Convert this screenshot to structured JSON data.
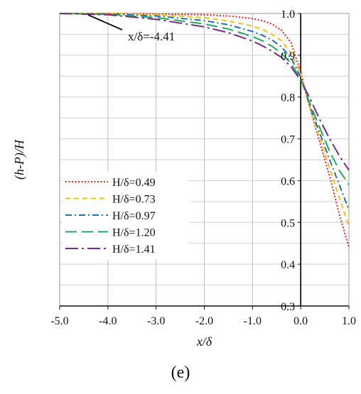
{
  "chart_data": {
    "type": "line",
    "title": "",
    "xlabel": "x/δ",
    "ylabel": "(h-P)/H",
    "xlim": [
      -5.0,
      1.0
    ],
    "ylim": [
      0.3,
      1.0
    ],
    "x_ticks": [
      "-5.0",
      "-4.0",
      "-3.0",
      "-2.0",
      "-1.0",
      "0.0",
      "1.0"
    ],
    "y_ticks": [
      "0.3",
      "0.4",
      "0.5",
      "0.6",
      "0.7",
      "0.8",
      "0.9",
      "1.0"
    ],
    "grid": true,
    "legend_position": "left-middle",
    "panel_label": "(e)",
    "annotation": {
      "text": "x/δ=-4.41",
      "x": -4.41,
      "y": 1.0
    },
    "series": [
      {
        "name": "H/δ=0.49",
        "color": "#e8211b",
        "dash": "dotted",
        "x": [
          -5.0,
          -4.0,
          -3.0,
          -2.0,
          -1.5,
          -1.0,
          -0.8,
          -0.6,
          -0.4,
          -0.2,
          0.0,
          0.2,
          0.4,
          0.6,
          0.8,
          1.0
        ],
        "y": [
          1.0,
          1.0,
          0.999,
          0.997,
          0.994,
          0.988,
          0.983,
          0.975,
          0.96,
          0.93,
          0.86,
          0.77,
          0.69,
          0.61,
          0.52,
          0.44
        ]
      },
      {
        "name": "H/δ=0.73",
        "color": "#f2c200",
        "dash": "dashed",
        "x": [
          -5.0,
          -4.0,
          -3.0,
          -2.0,
          -1.5,
          -1.0,
          -0.8,
          -0.6,
          -0.4,
          -0.2,
          0.0,
          0.2,
          0.4,
          0.6,
          0.8,
          1.0
        ],
        "y": [
          1.0,
          1.0,
          0.997,
          0.99,
          0.982,
          0.97,
          0.962,
          0.95,
          0.935,
          0.905,
          0.855,
          0.77,
          0.7,
          0.63,
          0.56,
          0.49
        ]
      },
      {
        "name": "H/δ=0.97",
        "color": "#1a73b8",
        "dash": "dashdot",
        "x": [
          -5.0,
          -4.0,
          -3.0,
          -2.0,
          -1.5,
          -1.0,
          -0.8,
          -0.6,
          -0.4,
          -0.2,
          0.0,
          0.2,
          0.4,
          0.6,
          0.8,
          1.0
        ],
        "y": [
          1.0,
          0.999,
          0.994,
          0.983,
          0.973,
          0.957,
          0.948,
          0.937,
          0.92,
          0.893,
          0.848,
          0.775,
          0.712,
          0.65,
          0.59,
          0.53
        ]
      },
      {
        "name": "H/δ=1.20",
        "color": "#1faa5c",
        "dash": "longdash",
        "x": [
          -5.0,
          -4.0,
          -3.0,
          -2.0,
          -1.5,
          -1.0,
          -0.8,
          -0.6,
          -0.4,
          -0.2,
          0.0,
          0.2,
          0.4,
          0.6,
          0.8,
          1.0
        ],
        "y": [
          1.0,
          0.998,
          0.99,
          0.975,
          0.963,
          0.945,
          0.935,
          0.922,
          0.905,
          0.88,
          0.843,
          0.782,
          0.725,
          0.67,
          0.625,
          0.59
        ]
      },
      {
        "name": "H/δ=1.41",
        "color": "#7b2a90",
        "dash": "dashdotlong",
        "x": [
          -5.0,
          -4.0,
          -3.0,
          -2.0,
          -1.5,
          -1.0,
          -0.8,
          -0.6,
          -0.4,
          -0.2,
          0.0,
          0.2,
          0.4,
          0.6,
          0.8,
          1.0
        ],
        "y": [
          1.0,
          0.997,
          0.986,
          0.968,
          0.954,
          0.934,
          0.923,
          0.91,
          0.895,
          0.872,
          0.84,
          0.795,
          0.745,
          0.7,
          0.66,
          0.625
        ]
      }
    ]
  }
}
